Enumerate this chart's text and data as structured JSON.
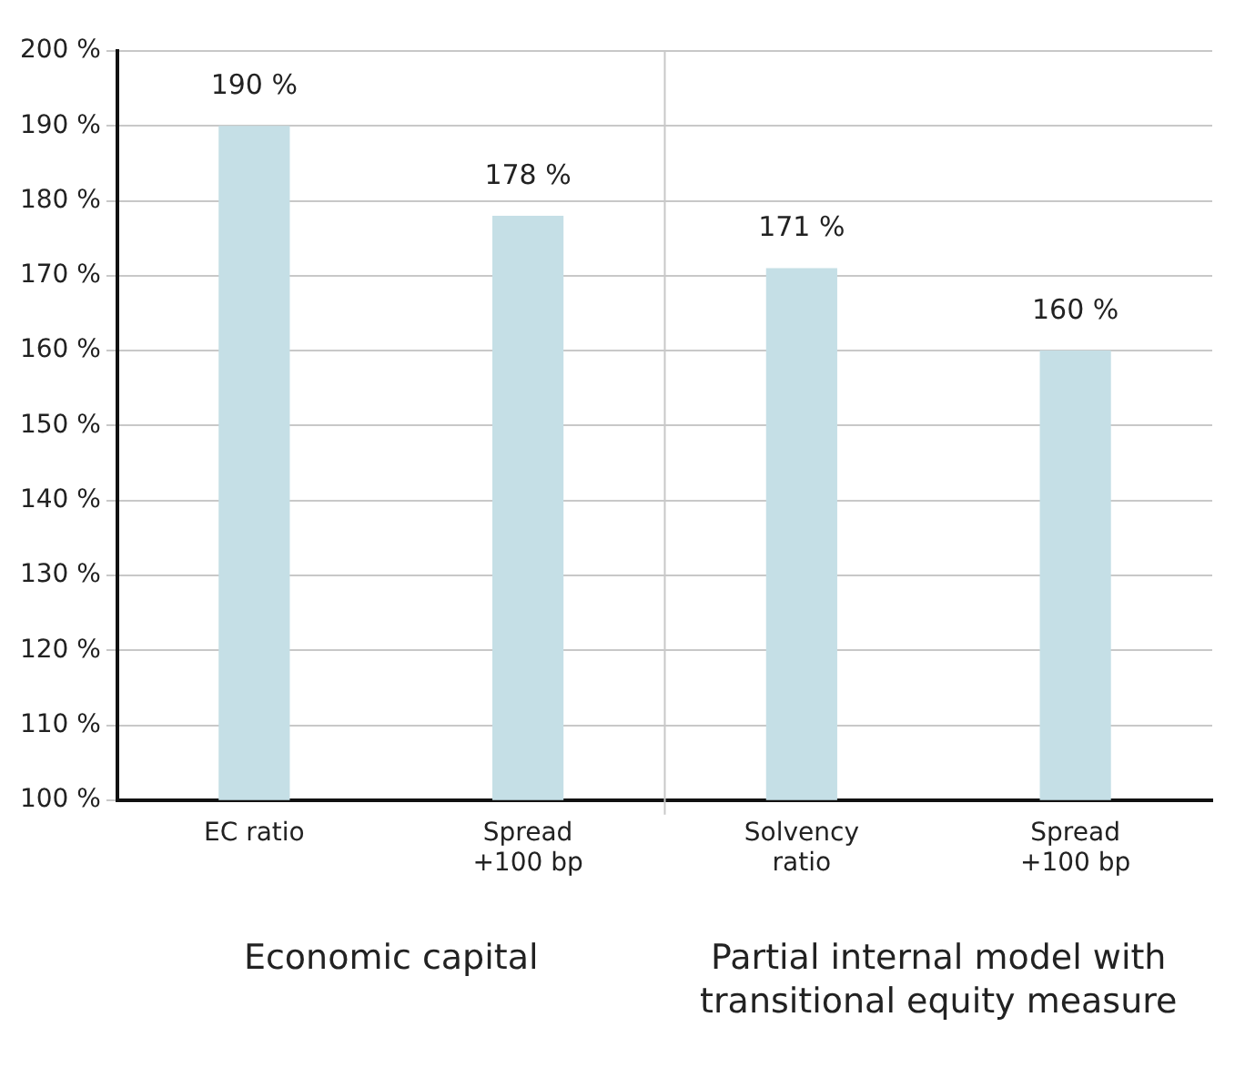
{
  "chart_data": {
    "type": "bar",
    "categories": [
      "EC ratio",
      "Spread\n+100 bp",
      "Solvency\nratio",
      "Spread\n+100 bp"
    ],
    "values": [
      190,
      178,
      171,
      160
    ],
    "color": "#c5dfe6",
    "ylim": [
      100,
      200
    ],
    "yticks": [
      {
        "value": 100,
        "label": "100 %"
      },
      {
        "value": 110,
        "label": "110 %"
      },
      {
        "value": 120,
        "label": "120 %"
      },
      {
        "value": 130,
        "label": "130 %"
      },
      {
        "value": 140,
        "label": "140 %"
      },
      {
        "value": 150,
        "label": "150 %"
      },
      {
        "value": 160,
        "label": "160 %"
      },
      {
        "value": 170,
        "label": "170 %"
      },
      {
        "value": 180,
        "label": "180 %"
      },
      {
        "value": 190,
        "label": "190 %"
      },
      {
        "value": 200,
        "label": "200 %"
      }
    ],
    "value_labels": [
      "190 %",
      "178 %",
      "171 %",
      "160 %"
    ],
    "annotations": [
      "Economic capital",
      "Partial internal model with\ntransitional equity measure"
    ],
    "grid": "y",
    "legend": false
  }
}
